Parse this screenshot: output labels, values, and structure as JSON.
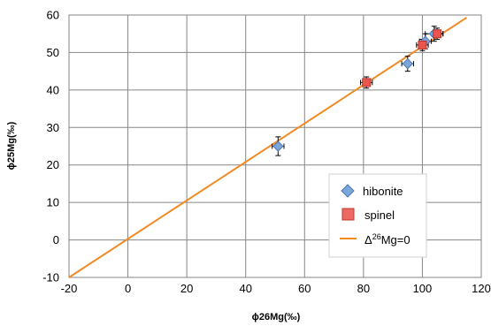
{
  "chart_data": {
    "type": "scatter",
    "title": "",
    "xlabel": "ϕ26Mg(‰)",
    "ylabel": "ϕ25Mg(‰)",
    "xlim": [
      -20,
      120
    ],
    "ylim": [
      -10,
      60
    ],
    "xticks": [
      -20,
      0,
      20,
      40,
      60,
      80,
      100,
      120
    ],
    "yticks": [
      -10,
      0,
      10,
      20,
      30,
      40,
      50,
      60
    ],
    "grid": true,
    "legend_position": "lower-right",
    "series": [
      {
        "name": "hibonite",
        "marker": "diamond",
        "color": "#7aa6dc",
        "points": [
          {
            "x": 51,
            "y": 25,
            "xerr": 2,
            "yerr": 2.5
          },
          {
            "x": 95,
            "y": 47,
            "xerr": 2,
            "yerr": 2
          },
          {
            "x": 101,
            "y": 53,
            "xerr": 2,
            "yerr": 2
          },
          {
            "x": 104,
            "y": 55,
            "xerr": 3,
            "yerr": 2
          }
        ]
      },
      {
        "name": "spinel",
        "marker": "square",
        "color": "#e9564e",
        "points": [
          {
            "x": 81,
            "y": 42,
            "xerr": 2,
            "yerr": 1.5
          },
          {
            "x": 100,
            "y": 52,
            "xerr": 2,
            "yerr": 1.5
          },
          {
            "x": 105,
            "y": 55,
            "xerr": 2,
            "yerr": 1.5
          }
        ]
      },
      {
        "name": "Δ26Mg=0",
        "line_type": "reference",
        "color": "#f08a24",
        "points": [
          {
            "x": -20,
            "y": -10
          },
          {
            "x": 115,
            "y": 59.3
          }
        ]
      }
    ]
  },
  "legend": {
    "hibonite": "hibonite",
    "spinel": "spinel",
    "delta_prefix": "Δ",
    "delta_sup": "26",
    "delta_suffix": "Mg=0"
  }
}
